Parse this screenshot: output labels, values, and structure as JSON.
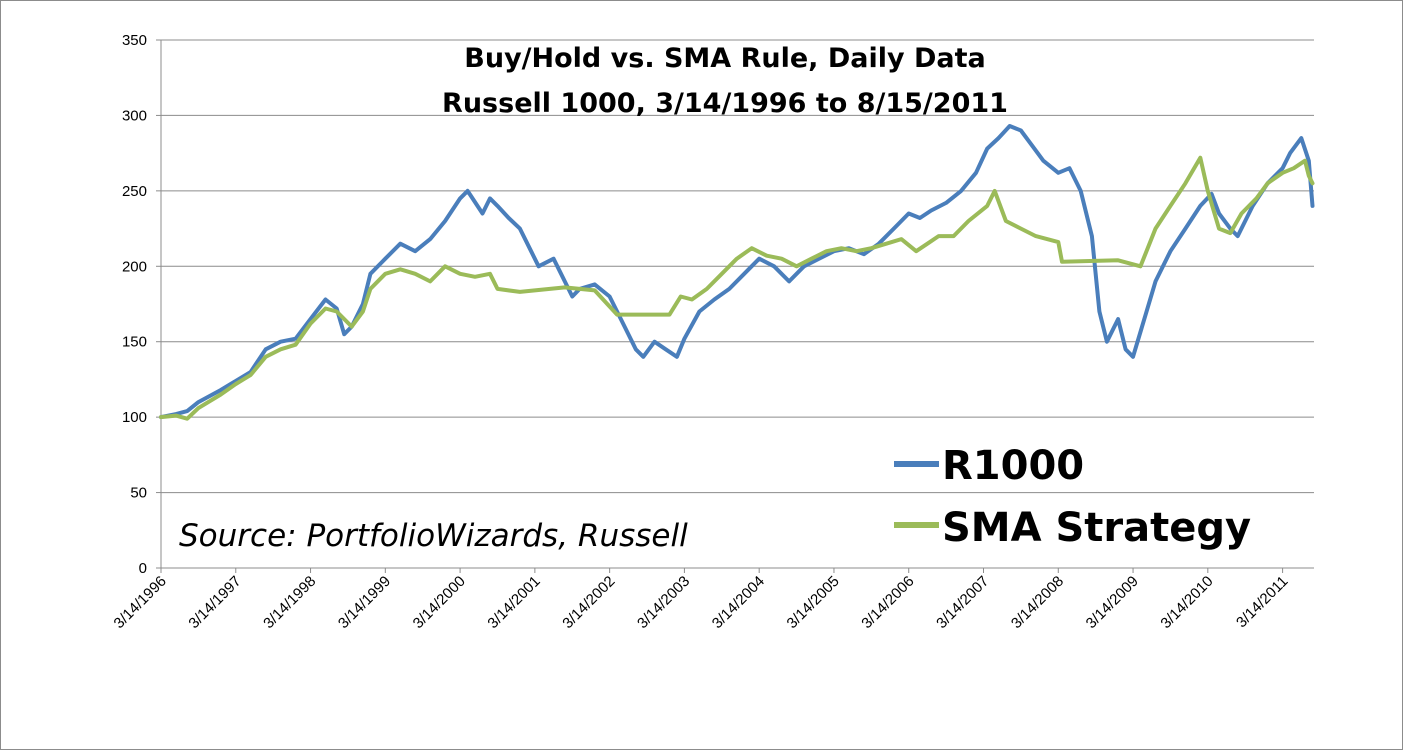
{
  "chart_data": {
    "type": "line",
    "title_lines": [
      "Buy/Hold vs. SMA Rule, Daily Data",
      "Russell 1000, 3/14/1996 to 8/15/2011"
    ],
    "annotation": "Source: PortfolioWizards, Russell",
    "xlabel": "",
    "ylabel": "",
    "ylim": [
      0,
      350
    ],
    "yticks": [
      "0",
      "50",
      "100",
      "150",
      "200",
      "250",
      "300",
      "350"
    ],
    "xlim": [
      1996.2,
      2011.62
    ],
    "xticks": [
      "3/14/1996",
      "3/14/1997",
      "3/14/1998",
      "3/14/1999",
      "3/14/2000",
      "3/14/2001",
      "3/14/2002",
      "3/14/2003",
      "3/14/2004",
      "3/14/2005",
      "3/14/2006",
      "3/14/2007",
      "3/14/2008",
      "3/14/2009",
      "3/14/2010",
      "3/14/2011"
    ],
    "grid": "horizontal",
    "legend_position": "bottom-right",
    "series": [
      {
        "name": "R1000",
        "color": "#4a7ebb",
        "x": [
          1996.2,
          1996.4,
          1996.55,
          1996.7,
          1997.0,
          1997.2,
          1997.4,
          1997.6,
          1997.8,
          1998.0,
          1998.2,
          1998.4,
          1998.55,
          1998.65,
          1998.75,
          1998.9,
          1999.0,
          1999.2,
          1999.4,
          1999.6,
          1999.8,
          2000.0,
          2000.2,
          2000.3,
          2000.5,
          2000.6,
          2000.7,
          2000.85,
          2001.0,
          2001.15,
          2001.25,
          2001.45,
          2001.6,
          2001.7,
          2001.8,
          2002.0,
          2002.2,
          2002.4,
          2002.55,
          2002.65,
          2002.8,
          2002.95,
          2003.1,
          2003.2,
          2003.4,
          2003.6,
          2003.8,
          2004.0,
          2004.2,
          2004.4,
          2004.6,
          2004.8,
          2005.0,
          2005.2,
          2005.4,
          2005.6,
          2005.8,
          2006.0,
          2006.2,
          2006.35,
          2006.5,
          2006.7,
          2006.9,
          2007.1,
          2007.25,
          2007.4,
          2007.55,
          2007.7,
          2007.85,
          2008.0,
          2008.2,
          2008.35,
          2008.5,
          2008.65,
          2008.75,
          2008.85,
          2009.0,
          2009.1,
          2009.2,
          2009.35,
          2009.5,
          2009.7,
          2009.9,
          2010.1,
          2010.25,
          2010.35,
          2010.5,
          2010.6,
          2010.8,
          2011.0,
          2011.2,
          2011.3,
          2011.45,
          2011.55,
          2011.6
        ],
        "values": [
          100,
          102,
          104,
          110,
          118,
          124,
          130,
          145,
          150,
          152,
          165,
          178,
          172,
          155,
          160,
          175,
          195,
          205,
          215,
          210,
          218,
          230,
          245,
          250,
          235,
          245,
          240,
          232,
          225,
          210,
          200,
          205,
          190,
          180,
          185,
          188,
          180,
          160,
          145,
          140,
          150,
          145,
          140,
          152,
          170,
          178,
          185,
          195,
          205,
          200,
          190,
          200,
          205,
          210,
          212,
          208,
          215,
          225,
          235,
          232,
          237,
          242,
          250,
          262,
          278,
          285,
          293,
          290,
          280,
          270,
          262,
          265,
          250,
          220,
          170,
          150,
          165,
          145,
          140,
          165,
          190,
          210,
          225,
          240,
          248,
          235,
          225,
          220,
          240,
          255,
          265,
          275,
          285,
          270,
          240
        ]
      },
      {
        "name": "SMA Strategy",
        "color": "#9bbb59",
        "x": [
          1996.2,
          1996.4,
          1996.55,
          1996.7,
          1997.0,
          1997.2,
          1997.4,
          1997.6,
          1997.8,
          1998.0,
          1998.2,
          1998.4,
          1998.55,
          1998.75,
          1998.9,
          1999.0,
          1999.2,
          1999.4,
          1999.6,
          1999.8,
          2000.0,
          2000.2,
          2000.4,
          2000.6,
          2000.7,
          2001.0,
          2001.6,
          2001.8,
          2002.0,
          2002.3,
          2003.0,
          2003.15,
          2003.3,
          2003.5,
          2003.7,
          2003.9,
          2004.1,
          2004.3,
          2004.5,
          2004.7,
          2004.9,
          2005.1,
          2005.3,
          2005.5,
          2005.7,
          2005.9,
          2006.1,
          2006.3,
          2006.45,
          2006.6,
          2006.8,
          2007.0,
          2007.25,
          2007.35,
          2007.5,
          2007.7,
          2007.9,
          2008.2,
          2008.25,
          2009.0,
          2009.3,
          2009.5,
          2009.7,
          2009.9,
          2010.1,
          2010.2,
          2010.35,
          2010.5,
          2010.65,
          2010.85,
          2011.0,
          2011.2,
          2011.35,
          2011.5,
          2011.55,
          2011.6
        ],
        "values": [
          100,
          101,
          99,
          106,
          115,
          122,
          128,
          140,
          145,
          148,
          162,
          172,
          170,
          160,
          170,
          185,
          195,
          198,
          195,
          190,
          200,
          195,
          193,
          195,
          185,
          183,
          186,
          185,
          184,
          168,
          168,
          180,
          178,
          185,
          195,
          205,
          212,
          207,
          205,
          200,
          205,
          210,
          212,
          210,
          212,
          215,
          218,
          210,
          215,
          220,
          220,
          230,
          240,
          250,
          230,
          225,
          220,
          216,
          203,
          204,
          200,
          225,
          240,
          255,
          272,
          250,
          225,
          222,
          235,
          245,
          255,
          262,
          265,
          270,
          260,
          255
        ]
      }
    ]
  }
}
